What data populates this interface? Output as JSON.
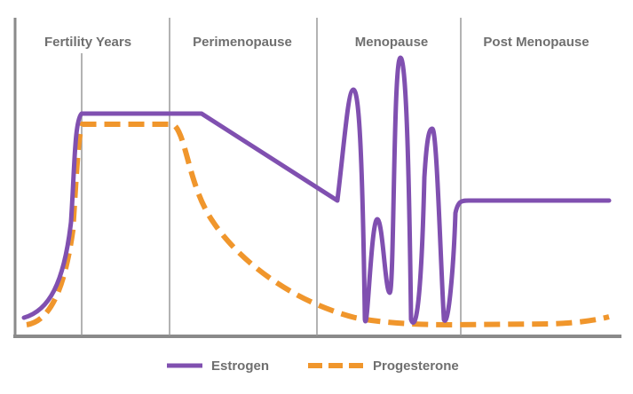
{
  "chart_data": {
    "type": "line",
    "title": "",
    "xlabel": "",
    "ylabel": "",
    "phases": [
      "Fertility Years",
      "Perimenopause",
      "Menopause",
      "Post Menopause"
    ],
    "legend_position": "bottom",
    "grid": false,
    "series": [
      {
        "name": "Estrogen",
        "color": "#8050b0",
        "style": "solid"
      },
      {
        "name": "Progesterone",
        "color": "#f0962c",
        "style": "dashed"
      }
    ]
  }
}
